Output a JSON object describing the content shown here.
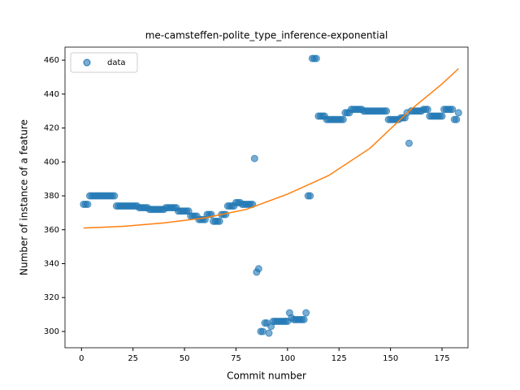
{
  "chart_data": {
    "type": "scatter",
    "title": "me-camsteffen-polite_type_inference-exponential",
    "xlabel": "Commit number",
    "ylabel": "Number of instance of a feature",
    "xlim": [
      -8,
      187.6
    ],
    "ylim": [
      290.4,
      467.7
    ],
    "xticks": [
      0,
      25,
      50,
      75,
      100,
      125,
      150,
      175
    ],
    "yticks": [
      300,
      320,
      340,
      360,
      380,
      400,
      420,
      440,
      460
    ],
    "legend": "upper left",
    "series": [
      {
        "name": "data",
        "type": "scatter",
        "color": "#1f77b4",
        "x": [
          1,
          2,
          3,
          4,
          5,
          6,
          7,
          8,
          9,
          10,
          11,
          12,
          13,
          14,
          15,
          16,
          17,
          18,
          19,
          20,
          21,
          22,
          23,
          24,
          25,
          26,
          27,
          28,
          29,
          30,
          31,
          32,
          33,
          34,
          35,
          36,
          37,
          38,
          39,
          40,
          41,
          42,
          43,
          44,
          45,
          46,
          47,
          48,
          49,
          50,
          51,
          52,
          53,
          54,
          55,
          56,
          57,
          58,
          59,
          60,
          61,
          62,
          63,
          64,
          65,
          66,
          67,
          68,
          69,
          70,
          71,
          72,
          73,
          74,
          75,
          76,
          77,
          78,
          79,
          80,
          81,
          82,
          83,
          84,
          85,
          86,
          87,
          88,
          89,
          90,
          91,
          92,
          93,
          94,
          95,
          96,
          97,
          98,
          99,
          100,
          101,
          102,
          103,
          104,
          105,
          106,
          107,
          108,
          109,
          110,
          111,
          112,
          113,
          114,
          115,
          116,
          117,
          118,
          119,
          120,
          121,
          122,
          123,
          124,
          125,
          126,
          127,
          128,
          129,
          130,
          131,
          132,
          133,
          134,
          135,
          136,
          137,
          138,
          139,
          140,
          141,
          142,
          143,
          144,
          145,
          146,
          147,
          148,
          149,
          150,
          151,
          152,
          153,
          154,
          155,
          156,
          157,
          158,
          159,
          160,
          161,
          162,
          163,
          164,
          165,
          166,
          167,
          168,
          169,
          170,
          171,
          172,
          173,
          174,
          175,
          176,
          177,
          178,
          179,
          180,
          181,
          182,
          183
        ],
        "values": [
          375,
          375,
          375,
          380,
          380,
          380,
          380,
          380,
          380,
          380,
          380,
          380,
          380,
          380,
          380,
          380,
          374,
          374,
          374,
          374,
          374,
          374,
          374,
          374,
          374,
          374,
          374,
          373,
          373,
          373,
          373,
          373,
          372,
          372,
          372,
          372,
          372,
          372,
          372,
          372,
          373,
          373,
          373,
          373,
          373,
          373,
          371,
          371,
          371,
          371,
          371,
          371,
          368,
          368,
          368,
          368,
          366,
          366,
          366,
          366,
          369,
          369,
          369,
          365,
          365,
          365,
          365,
          369,
          369,
          369,
          374,
          374,
          374,
          374,
          376,
          376,
          376,
          375,
          375,
          375,
          375,
          375,
          375,
          402,
          335,
          337,
          300,
          300,
          305,
          305,
          299,
          303,
          306,
          306,
          306,
          306,
          306,
          306,
          306,
          306,
          311,
          308,
          307,
          307,
          307,
          307,
          307,
          307,
          311,
          380,
          380,
          461,
          461,
          461,
          427,
          427,
          427,
          427,
          425,
          425,
          425,
          425,
          425,
          425,
          425,
          425,
          425,
          429,
          429,
          429,
          431,
          431,
          431,
          431,
          431,
          431,
          430,
          430,
          430,
          430,
          430,
          430,
          430,
          430,
          430,
          430,
          430,
          430,
          425,
          425,
          425,
          425,
          425,
          425,
          426,
          426,
          426,
          429,
          411,
          430,
          430,
          430,
          430,
          430,
          430,
          431,
          431,
          431,
          427,
          427,
          427,
          427,
          427,
          427,
          427,
          431,
          431,
          431,
          431,
          431,
          425,
          425,
          429
        ]
      },
      {
        "type": "line",
        "color": "#ff7f0e",
        "x": [
          1,
          20,
          40,
          60,
          80,
          100,
          120,
          140,
          160,
          175,
          183
        ],
        "values": [
          361,
          362,
          364,
          367,
          372,
          381,
          392,
          408,
          431,
          446,
          455
        ]
      }
    ]
  }
}
